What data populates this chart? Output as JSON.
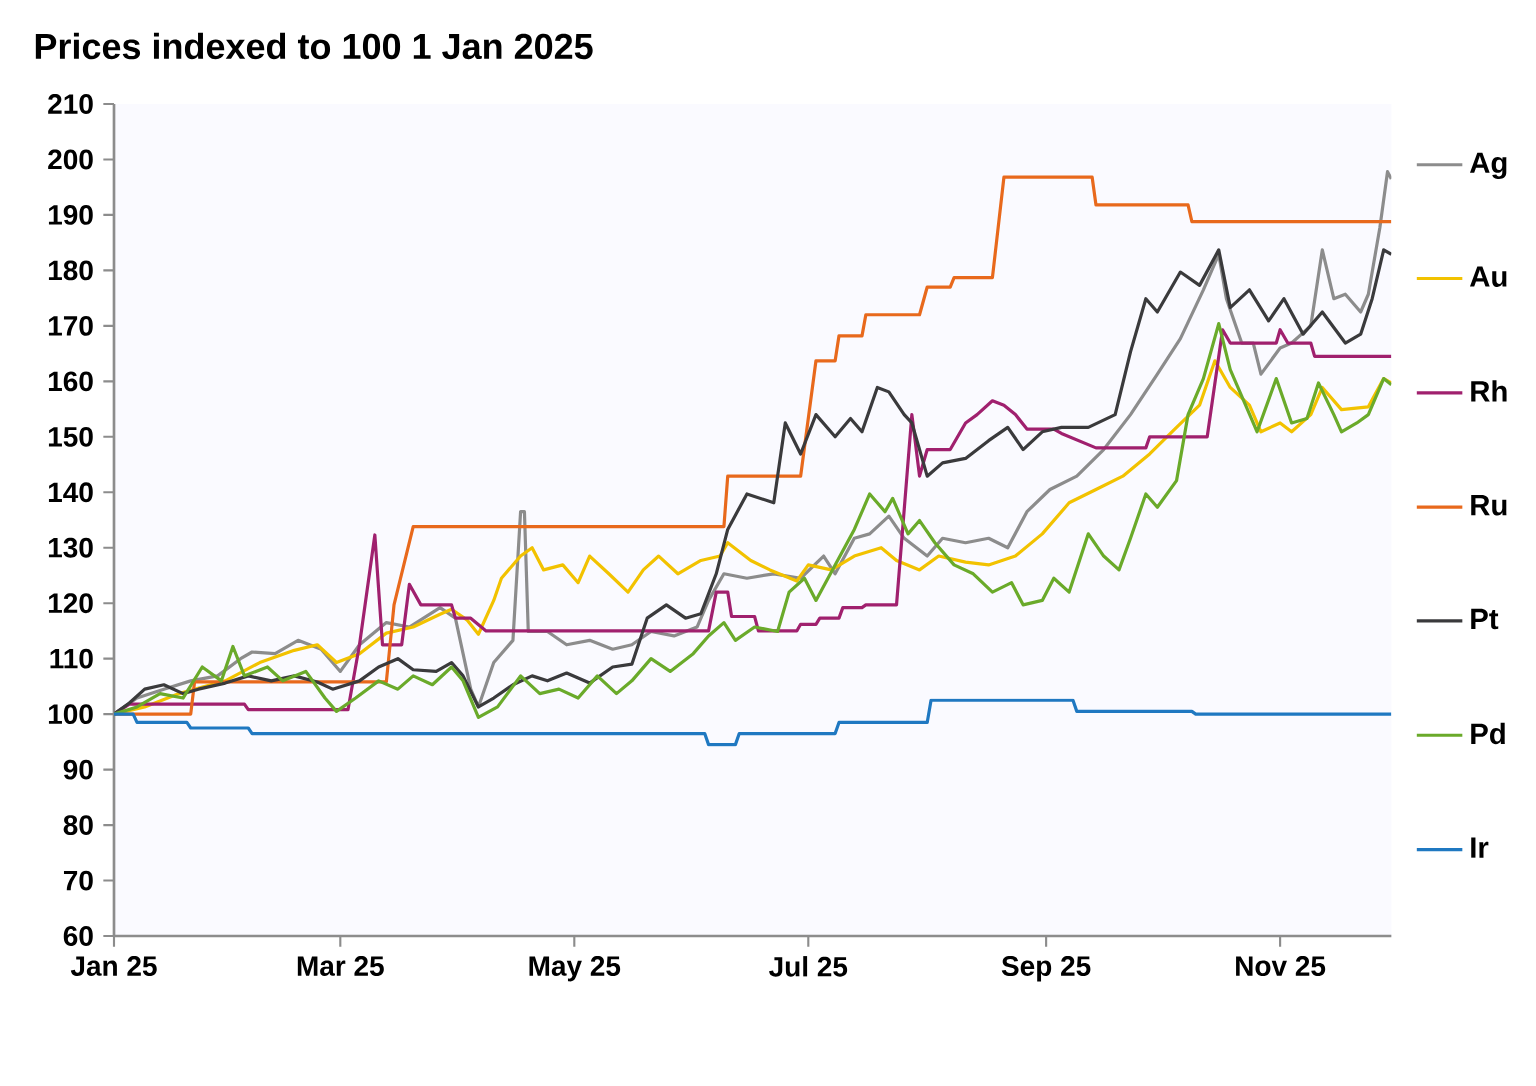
{
  "chart_data": {
    "type": "line",
    "title": "Prices indexed to 100 1 Jan 2025",
    "xlim": [
      "2025-01-01",
      "2025-11-30"
    ],
    "xticks": [
      {
        "value": "2025-01-01",
        "label": "Jan 25"
      },
      {
        "value": "2025-03-01",
        "label": "Mar 25"
      },
      {
        "value": "2025-05-01",
        "label": "May 25"
      },
      {
        "value": "2025-07-01",
        "label": "Jul 25"
      },
      {
        "value": "2025-09-01",
        "label": "Sep 25"
      },
      {
        "value": "2025-11-01",
        "label": "Nov 25"
      }
    ],
    "ylim": [
      60,
      210
    ],
    "yticks": [
      60,
      70,
      80,
      90,
      100,
      110,
      120,
      130,
      140,
      150,
      160,
      170,
      180,
      190,
      200,
      210
    ],
    "legend": "right",
    "series": [
      {
        "name": "Ag",
        "color": "#8c8c8c",
        "x": [
          "2025-01-01",
          "2025-01-07",
          "2025-01-14",
          "2025-01-21",
          "2025-01-28",
          "2025-02-03",
          "2025-02-06",
          "2025-02-12",
          "2025-02-18",
          "2025-02-24",
          "2025-03-01",
          "2025-03-06",
          "2025-03-13",
          "2025-03-19",
          "2025-03-27",
          "2025-03-31",
          "2025-04-04",
          "2025-04-06",
          "2025-04-10",
          "2025-04-15",
          "2025-04-17",
          "2025-04-18",
          "2025-04-19",
          "2025-04-24",
          "2025-04-29",
          "2025-05-05",
          "2025-05-11",
          "2025-05-16",
          "2025-05-21",
          "2025-05-27",
          "2025-06-02",
          "2025-06-05",
          "2025-06-09",
          "2025-06-15",
          "2025-06-22",
          "2025-06-29",
          "2025-07-05",
          "2025-07-08",
          "2025-07-13",
          "2025-07-17",
          "2025-07-22",
          "2025-07-26",
          "2025-08-01",
          "2025-08-05",
          "2025-08-11",
          "2025-08-17",
          "2025-08-22",
          "2025-08-27",
          "2025-09-02",
          "2025-09-09",
          "2025-09-16",
          "2025-09-23",
          "2025-09-30",
          "2025-10-06",
          "2025-10-12",
          "2025-10-16",
          "2025-10-18",
          "2025-10-22",
          "2025-10-25",
          "2025-10-27",
          "2025-11-01",
          "2025-11-04",
          "2025-11-09",
          "2025-11-12",
          "2025-11-15",
          "2025-11-18",
          "2025-11-22",
          "2025-11-24",
          "2025-11-27",
          "2025-11-29",
          "2025-11-30"
        ],
        "values": [
          100,
          102.9,
          104.5,
          106,
          106.9,
          110,
          111.2,
          110.9,
          113.3,
          111.7,
          107.7,
          112.5,
          116.5,
          115.7,
          119.2,
          117.3,
          104.5,
          101.3,
          109.3,
          113.3,
          136.5,
          136.5,
          114.9,
          114.9,
          112.5,
          113.3,
          111.7,
          112.5,
          114.9,
          114.1,
          115.7,
          120.5,
          125.3,
          124.5,
          125.3,
          124.5,
          128.5,
          125.3,
          131.7,
          132.5,
          135.7,
          131.7,
          128.5,
          131.7,
          130.9,
          131.7,
          130,
          136.5,
          140.5,
          142.9,
          147.7,
          154,
          161.3,
          167.7,
          176.5,
          182.9,
          174.9,
          166.9,
          166.9,
          161.3,
          166,
          166.9,
          170,
          183.7,
          174.9,
          175.7,
          172.5,
          175.7,
          187.7,
          197.8,
          196.5
        ]
      },
      {
        "name": "Au",
        "color": "#f2c200",
        "x": [
          "2025-01-01",
          "2025-01-09",
          "2025-01-18",
          "2025-01-30",
          "2025-02-08",
          "2025-02-17",
          "2025-02-23",
          "2025-02-28",
          "2025-03-06",
          "2025-03-13",
          "2025-03-20",
          "2025-03-27",
          "2025-03-30",
          "2025-04-03",
          "2025-04-06",
          "2025-04-10",
          "2025-04-12",
          "2025-04-17",
          "2025-04-20",
          "2025-04-23",
          "2025-04-28",
          "2025-05-02",
          "2025-05-05",
          "2025-05-10",
          "2025-05-15",
          "2025-05-19",
          "2025-05-23",
          "2025-05-28",
          "2025-06-03",
          "2025-06-08",
          "2025-06-10",
          "2025-06-16",
          "2025-06-21",
          "2025-06-28",
          "2025-07-01",
          "2025-07-07",
          "2025-07-13",
          "2025-07-20",
          "2025-07-24",
          "2025-07-30",
          "2025-08-04",
          "2025-08-11",
          "2025-08-17",
          "2025-08-24",
          "2025-08-31",
          "2025-09-07",
          "2025-09-14",
          "2025-09-21",
          "2025-09-28",
          "2025-10-05",
          "2025-10-11",
          "2025-10-15",
          "2025-10-19",
          "2025-10-24",
          "2025-10-27",
          "2025-11-01",
          "2025-11-04",
          "2025-11-09",
          "2025-11-12",
          "2025-11-17",
          "2025-11-24",
          "2025-11-28",
          "2025-11-30"
        ],
        "values": [
          100,
          101.3,
          103.7,
          106,
          109.3,
          111.5,
          112.5,
          109.3,
          110.9,
          114.6,
          115.7,
          118,
          118.9,
          117,
          114.4,
          120.5,
          124.5,
          128.5,
          130,
          126,
          126.9,
          123.7,
          128.5,
          125.3,
          122,
          126,
          128.5,
          125.3,
          127.7,
          128.5,
          130.9,
          127.7,
          126,
          124,
          126.9,
          126,
          128.5,
          130,
          127.7,
          126,
          128.5,
          127.4,
          126.9,
          128.5,
          132.5,
          138.1,
          140.5,
          142.9,
          146.9,
          151.7,
          155.7,
          163.7,
          158.9,
          155.7,
          150.9,
          152.5,
          150.9,
          154,
          158.9,
          154.9,
          155.4,
          160.5,
          159.7
        ]
      },
      {
        "name": "Rh",
        "color": "#a0206e",
        "x": [
          "2025-01-01",
          "2025-01-05",
          "2025-02-04",
          "2025-02-05",
          "2025-03-03",
          "2025-03-06",
          "2025-03-10",
          "2025-03-12",
          "2025-03-17",
          "2025-03-19",
          "2025-03-22",
          "2025-03-30",
          "2025-03-31",
          "2025-04-04",
          "2025-04-08",
          "2025-06-05",
          "2025-06-07",
          "2025-06-10",
          "2025-06-11",
          "2025-06-17",
          "2025-06-18",
          "2025-06-28",
          "2025-06-29",
          "2025-07-03",
          "2025-07-04",
          "2025-07-09",
          "2025-07-10",
          "2025-07-15",
          "2025-07-16",
          "2025-07-24",
          "2025-07-28",
          "2025-07-30",
          "2025-08-01",
          "2025-08-07",
          "2025-08-11",
          "2025-08-14",
          "2025-08-18",
          "2025-08-21",
          "2025-08-24",
          "2025-08-27",
          "2025-09-03",
          "2025-09-05",
          "2025-09-14",
          "2025-09-27",
          "2025-09-28",
          "2025-10-13",
          "2025-10-17",
          "2025-10-19",
          "2025-10-31",
          "2025-11-01",
          "2025-11-03",
          "2025-11-09",
          "2025-11-10",
          "2025-11-30"
        ],
        "values": [
          100,
          101.8,
          101.8,
          100.8,
          100.8,
          112.5,
          132.3,
          112.5,
          112.5,
          123.4,
          119.7,
          119.7,
          117.3,
          117.3,
          115,
          115,
          122,
          122,
          117.6,
          117.6,
          115,
          115,
          116.2,
          116.2,
          117.3,
          117.3,
          119.2,
          119.2,
          119.7,
          119.7,
          154,
          142.9,
          147.7,
          147.7,
          152.5,
          154,
          156.5,
          155.7,
          154,
          151.4,
          151.4,
          150.6,
          148,
          148,
          150,
          150,
          169.3,
          166.9,
          166.9,
          169.3,
          166.9,
          166.9,
          164.5,
          164.5
        ]
      },
      {
        "name": "Ru",
        "color": "#e8691c",
        "x": [
          "2025-01-01",
          "2025-01-21",
          "2025-01-22",
          "2025-03-13",
          "2025-03-15",
          "2025-03-20",
          "2025-06-09",
          "2025-06-10",
          "2025-06-29",
          "2025-07-03",
          "2025-07-08",
          "2025-07-09",
          "2025-07-15",
          "2025-07-16",
          "2025-07-30",
          "2025-08-01",
          "2025-08-07",
          "2025-08-08",
          "2025-08-18",
          "2025-08-21",
          "2025-09-13",
          "2025-09-14",
          "2025-10-08",
          "2025-10-09",
          "2025-11-30"
        ],
        "values": [
          100,
          100,
          105.8,
          105.8,
          119.7,
          133.8,
          133.8,
          142.9,
          142.9,
          163.7,
          163.7,
          168.2,
          168.2,
          172,
          172,
          177,
          177,
          178.7,
          178.7,
          196.8,
          196.8,
          191.8,
          191.8,
          188.8,
          188.8
        ]
      },
      {
        "name": "Pt",
        "color": "#3a3a3c",
        "x": [
          "2025-01-01",
          "2025-01-05",
          "2025-01-09",
          "2025-01-14",
          "2025-01-19",
          "2025-01-23",
          "2025-01-30",
          "2025-02-05",
          "2025-02-11",
          "2025-02-17",
          "2025-02-23",
          "2025-02-27",
          "2025-03-06",
          "2025-03-11",
          "2025-03-16",
          "2025-03-20",
          "2025-03-26",
          "2025-03-30",
          "2025-04-02",
          "2025-04-06",
          "2025-04-10",
          "2025-04-15",
          "2025-04-20",
          "2025-04-24",
          "2025-04-29",
          "2025-05-05",
          "2025-05-11",
          "2025-05-16",
          "2025-05-20",
          "2025-05-25",
          "2025-05-30",
          "2025-06-03",
          "2025-06-07",
          "2025-06-10",
          "2025-06-15",
          "2025-06-22",
          "2025-06-25",
          "2025-06-29",
          "2025-07-03",
          "2025-07-08",
          "2025-07-12",
          "2025-07-15",
          "2025-07-19",
          "2025-07-22",
          "2025-07-26",
          "2025-07-28",
          "2025-08-01",
          "2025-08-05",
          "2025-08-11",
          "2025-08-17",
          "2025-08-22",
          "2025-08-26",
          "2025-08-31",
          "2025-09-05",
          "2025-09-12",
          "2025-09-19",
          "2025-09-23",
          "2025-09-27",
          "2025-09-30",
          "2025-10-06",
          "2025-10-11",
          "2025-10-16",
          "2025-10-19",
          "2025-10-24",
          "2025-10-29",
          "2025-11-02",
          "2025-11-07",
          "2025-11-12",
          "2025-11-18",
          "2025-11-22",
          "2025-11-25",
          "2025-11-28",
          "2025-11-30"
        ],
        "values": [
          100,
          102,
          104.5,
          105.3,
          103.7,
          104.5,
          105.6,
          106.9,
          106,
          106.9,
          105.8,
          104.5,
          106,
          108.5,
          110,
          108,
          107.7,
          109.3,
          106.9,
          101.3,
          102.9,
          105.3,
          106.9,
          106,
          107.4,
          105.6,
          108.5,
          109,
          117.3,
          119.7,
          117.3,
          118.1,
          125.3,
          133.3,
          139.7,
          138.1,
          152.5,
          146.9,
          154,
          150,
          153.3,
          150.9,
          158.9,
          158.1,
          154,
          152.5,
          142.9,
          145.3,
          146.1,
          149.3,
          151.7,
          147.7,
          150.9,
          151.7,
          151.7,
          154,
          165.3,
          174.9,
          172.5,
          179.7,
          177.3,
          183.7,
          173.3,
          176.5,
          170.9,
          174.9,
          168.5,
          172.5,
          166.9,
          168.5,
          174.9,
          183.7,
          182.9
        ]
      },
      {
        "name": "Pd",
        "color": "#6aaa2a",
        "x": [
          "2025-01-01",
          "2025-01-07",
          "2025-01-13",
          "2025-01-19",
          "2025-01-24",
          "2025-01-29",
          "2025-02-01",
          "2025-02-04",
          "2025-02-10",
          "2025-02-14",
          "2025-02-20",
          "2025-02-25",
          "2025-02-28",
          "2025-03-05",
          "2025-03-11",
          "2025-03-16",
          "2025-03-20",
          "2025-03-25",
          "2025-03-30",
          "2025-04-02",
          "2025-04-06",
          "2025-04-11",
          "2025-04-17",
          "2025-04-22",
          "2025-04-27",
          "2025-05-02",
          "2025-05-07",
          "2025-05-12",
          "2025-05-16",
          "2025-05-21",
          "2025-05-26",
          "2025-06-01",
          "2025-06-05",
          "2025-06-09",
          "2025-06-12",
          "2025-06-17",
          "2025-06-23",
          "2025-06-26",
          "2025-06-30",
          "2025-07-03",
          "2025-07-08",
          "2025-07-13",
          "2025-07-17",
          "2025-07-21",
          "2025-07-23",
          "2025-07-27",
          "2025-07-30",
          "2025-08-03",
          "2025-08-08",
          "2025-08-13",
          "2025-08-18",
          "2025-08-23",
          "2025-08-26",
          "2025-08-31",
          "2025-09-03",
          "2025-09-07",
          "2025-09-12",
          "2025-09-16",
          "2025-09-20",
          "2025-09-23",
          "2025-09-27",
          "2025-09-30",
          "2025-10-05",
          "2025-10-08",
          "2025-10-12",
          "2025-10-16",
          "2025-10-19",
          "2025-10-23",
          "2025-10-26",
          "2025-10-31",
          "2025-11-04",
          "2025-11-08",
          "2025-11-11",
          "2025-11-15",
          "2025-11-17",
          "2025-11-21",
          "2025-11-24",
          "2025-11-28",
          "2025-11-30"
        ],
        "values": [
          100,
          101.3,
          103.7,
          102.9,
          108.5,
          106,
          112.2,
          106.9,
          108.5,
          106,
          107.7,
          102.9,
          100.5,
          102.9,
          106,
          104.5,
          106.9,
          105.3,
          108.5,
          106,
          99.4,
          101.3,
          106.9,
          103.7,
          104.5,
          102.9,
          106.9,
          103.7,
          106,
          110,
          107.7,
          110.9,
          114.1,
          116.5,
          113.3,
          115.7,
          114.9,
          122,
          124.5,
          120.5,
          126.9,
          133.3,
          139.7,
          136.5,
          138.9,
          132.5,
          134.9,
          130.9,
          126.9,
          125.3,
          122,
          123.7,
          119.7,
          120.5,
          124.5,
          122,
          132.5,
          128.5,
          126,
          131.7,
          139.7,
          137.3,
          142.1,
          154,
          160.5,
          170.4,
          162.1,
          155.7,
          150.9,
          160.5,
          152.5,
          153.3,
          159.7,
          154,
          150.9,
          152.5,
          154,
          160.5,
          159.4
        ]
      },
      {
        "name": "Ir",
        "color": "#1f78c1",
        "x": [
          "2025-01-01",
          "2025-01-06",
          "2025-01-07",
          "2025-01-20",
          "2025-01-21",
          "2025-02-05",
          "2025-02-06",
          "2025-06-04",
          "2025-06-05",
          "2025-06-12",
          "2025-06-13",
          "2025-07-08",
          "2025-07-09",
          "2025-08-01",
          "2025-08-02",
          "2025-09-08",
          "2025-09-09",
          "2025-10-09",
          "2025-10-10",
          "2025-11-30"
        ],
        "values": [
          100,
          100,
          98.5,
          98.5,
          97.5,
          97.5,
          96.5,
          96.5,
          94.5,
          94.5,
          96.5,
          96.5,
          98.5,
          98.5,
          102.5,
          102.5,
          100.5,
          100.5,
          100,
          100
        ]
      }
    ]
  }
}
